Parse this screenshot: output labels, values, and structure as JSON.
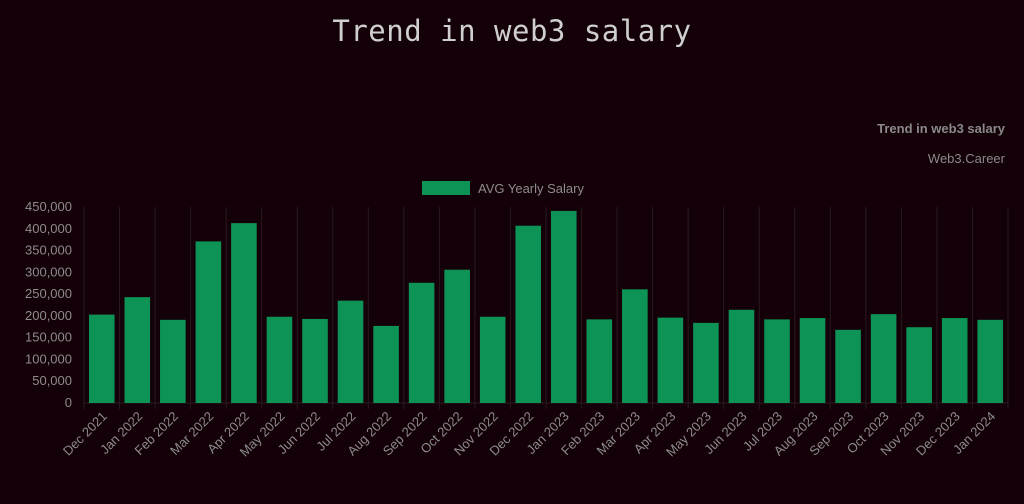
{
  "page": {
    "title": "Trend in web3 salary"
  },
  "chart_data": {
    "type": "bar",
    "title": "Trend in web3 salary",
    "subtitle": "Web3.Career",
    "xlabel": "",
    "ylabel": "",
    "ylim": [
      0,
      450000
    ],
    "y_ticks": [
      0,
      50000,
      100000,
      150000,
      200000,
      250000,
      300000,
      350000,
      400000,
      450000
    ],
    "y_tick_labels": [
      "0",
      "50,000",
      "100,000",
      "150,000",
      "200,000",
      "250,000",
      "300,000",
      "350,000",
      "400,000",
      "450,000"
    ],
    "legend_position": "top-center",
    "grid": true,
    "categories": [
      "Dec 2021",
      "Jan 2022",
      "Feb 2022",
      "Mar 2022",
      "Apr 2022",
      "May 2022",
      "Jun 2022",
      "Jul 2022",
      "Aug 2022",
      "Sep 2022",
      "Oct 2022",
      "Nov 2022",
      "Dec 2022",
      "Jan 2023",
      "Feb 2023",
      "Mar 2023",
      "Apr 2023",
      "May 2023",
      "Jun 2023",
      "Jul 2023",
      "Aug 2023",
      "Sep 2023",
      "Oct 2023",
      "Nov 2023",
      "Dec 2023",
      "Jan 2024"
    ],
    "series": [
      {
        "name": "AVG Yearly Salary",
        "color": "#0e9356",
        "values": [
          203000,
          243000,
          191000,
          371000,
          413000,
          198000,
          193000,
          235000,
          177000,
          276000,
          306000,
          198000,
          407000,
          441000,
          192000,
          261000,
          196000,
          184000,
          214000,
          192000,
          195000,
          168000,
          204000,
          174000,
          195000,
          191000
        ]
      }
    ]
  }
}
